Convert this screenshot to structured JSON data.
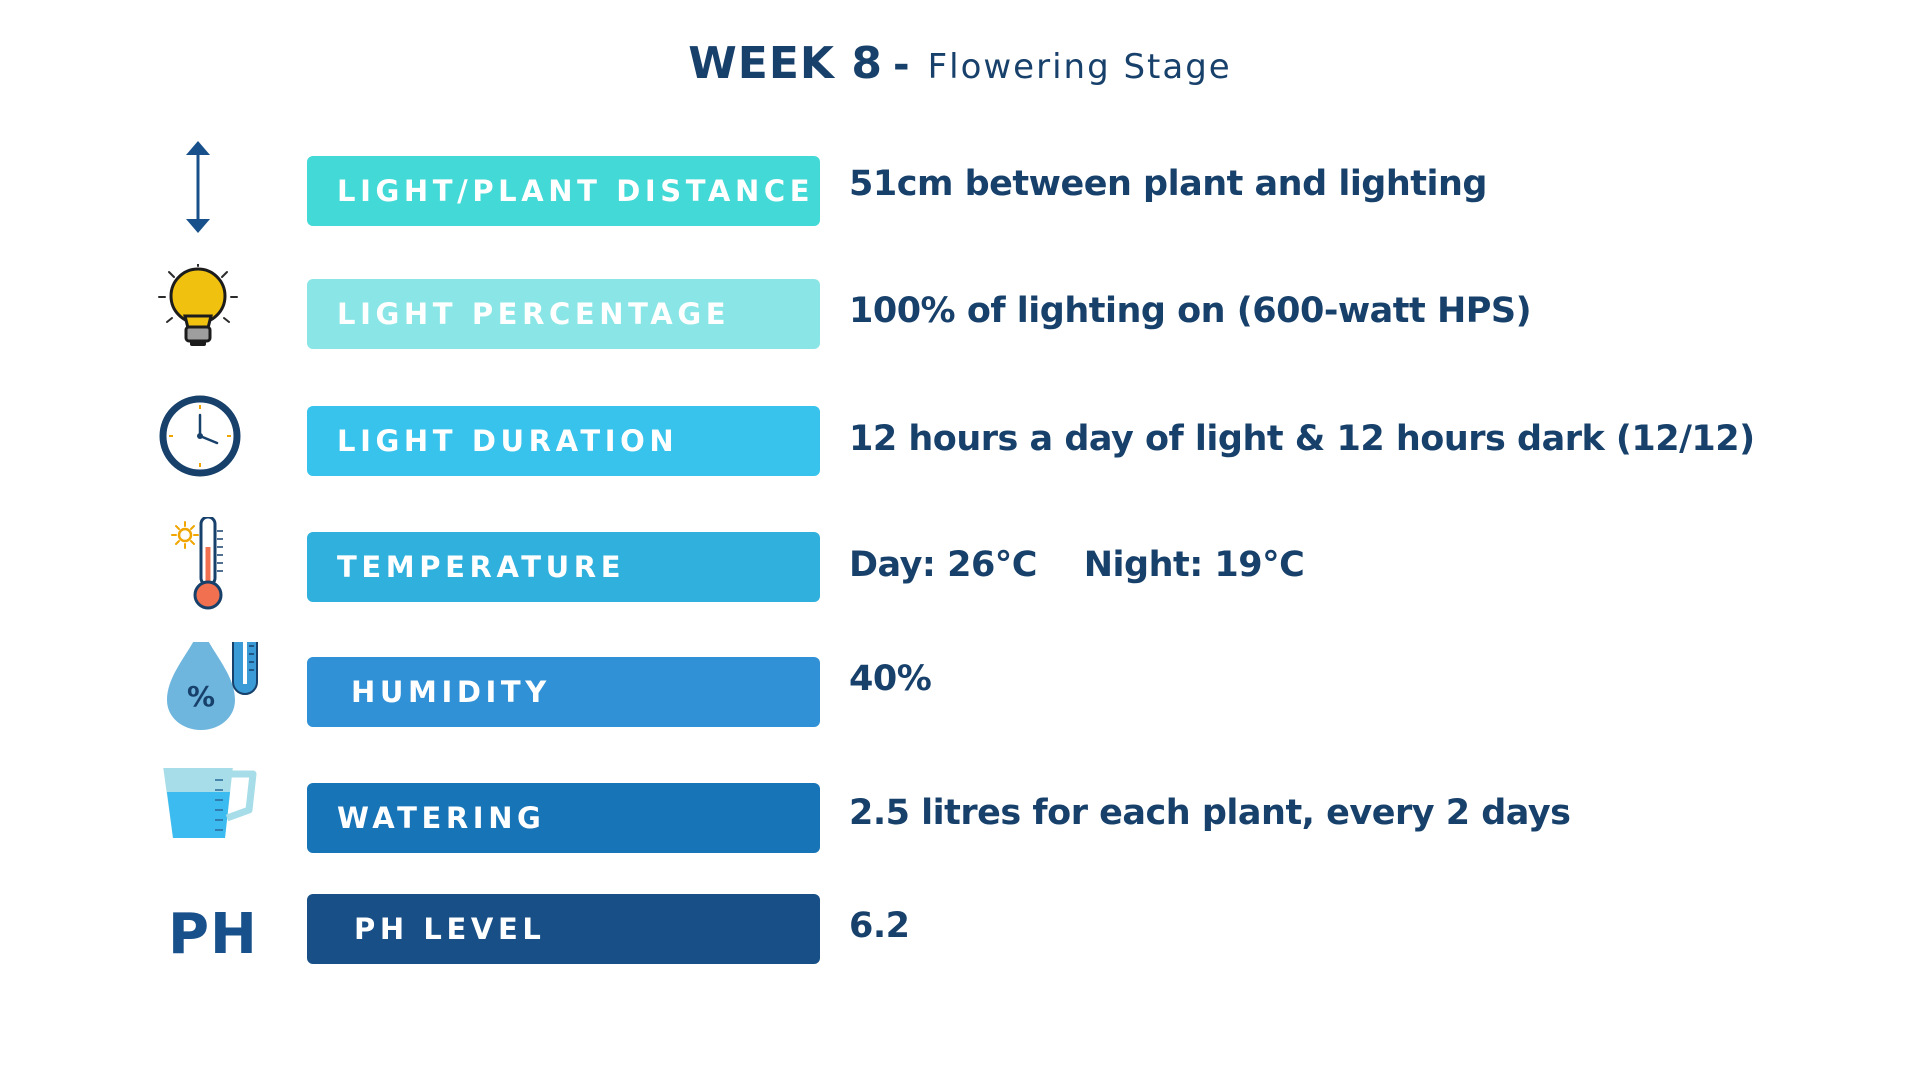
{
  "header": {
    "week": "WEEK 8",
    "separator": "-",
    "stage": "Flowering Stage"
  },
  "rows": [
    {
      "icon": "vertical-arrows-icon",
      "label": "LIGHT/PLANT DISTANCE",
      "value": "51cm between plant and lighting",
      "color": "#43d9d6"
    },
    {
      "icon": "lightbulb-icon",
      "label": "LIGHT PERCENTAGE",
      "value": "100% of lighting on (600-watt HPS)",
      "color": "#8ae6e6"
    },
    {
      "icon": "clock-icon",
      "label": "LIGHT DURATION",
      "value": "12 hours a day of light & 12 hours dark (12/12)",
      "color": "#37c3ec"
    },
    {
      "icon": "thermometer-icon",
      "label": "TEMPERATURE",
      "value": "Day: 26°C    Night: 19°C",
      "color": "#2fb0dd"
    },
    {
      "icon": "humidity-drop-icon",
      "label": "HUMIDITY",
      "value": "40%",
      "color": "#3091d6"
    },
    {
      "icon": "measuring-jug-icon",
      "label": "WATERING",
      "value": "2.5 litres for each plant, every 2 days",
      "color": "#1774b6"
    },
    {
      "icon": "ph-text-icon",
      "label": "PH LEVEL",
      "value": "6.2",
      "icon_text": "PH",
      "color": "#174f86"
    }
  ]
}
